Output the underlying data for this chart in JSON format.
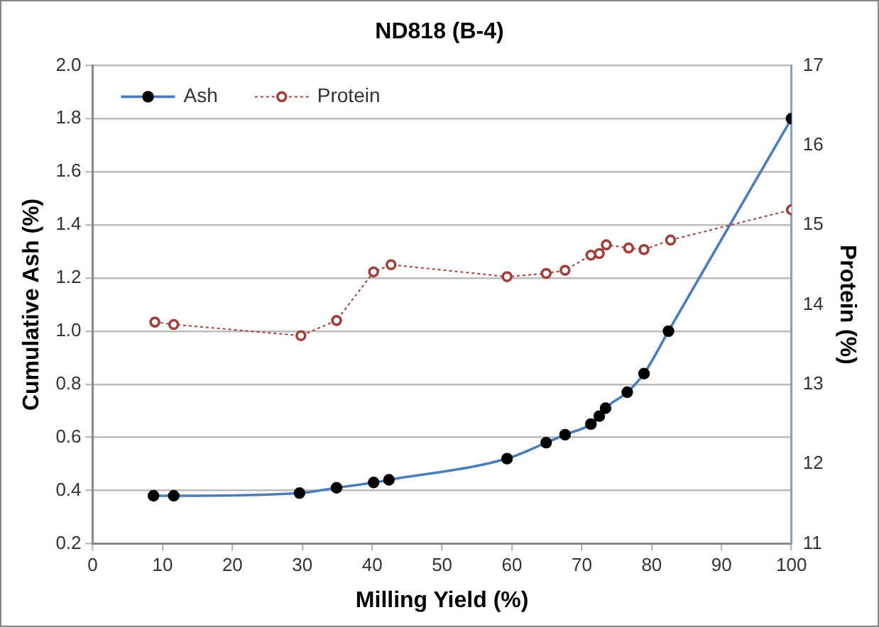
{
  "chart_data": {
    "type": "line",
    "title": "ND818 (B-4)",
    "xlabel": "Milling Yield (%)",
    "ylabel": "Cumulative Ash (%)",
    "y2label": "Protein (%)",
    "xlim": [
      0,
      100
    ],
    "xticks": [
      0,
      10,
      20,
      30,
      40,
      50,
      60,
      70,
      80,
      90,
      100
    ],
    "ylim": [
      0.2,
      2.0
    ],
    "yticks": [
      {
        "value": 0.2,
        "label": "0.2"
      },
      {
        "value": 0.4,
        "label": "0.4"
      },
      {
        "value": 0.6,
        "label": "0.6"
      },
      {
        "value": 0.8,
        "label": "0.8"
      },
      {
        "value": 1.0,
        "label": "1.0"
      },
      {
        "value": 1.2,
        "label": "1.2"
      },
      {
        "value": 1.4,
        "label": "1.4"
      },
      {
        "value": 1.6,
        "label": "1.6"
      },
      {
        "value": 1.8,
        "label": "1.8"
      },
      {
        "value": 2.0,
        "label": "2.0"
      }
    ],
    "y2lim": [
      11,
      17
    ],
    "y2ticks": [
      11,
      12,
      13,
      14,
      15,
      16,
      17
    ],
    "grid": "y",
    "legend": "top left",
    "series": [
      {
        "name": "Ash",
        "color": "#4a7ebb",
        "marker": "circle",
        "line_style": "solid",
        "x": [
          8.7,
          11.6,
          29.6,
          34.9,
          40.2,
          42.4,
          59.3,
          64.9,
          67.6,
          71.3,
          72.5,
          73.4,
          76.5,
          78.9,
          82.4,
          100
        ],
        "values": [
          0.38,
          0.38,
          0.39,
          0.41,
          0.43,
          0.44,
          0.52,
          0.58,
          0.61,
          0.65,
          0.68,
          0.71,
          0.77,
          0.84,
          1.0,
          1.8
        ]
      },
      {
        "name": "Protein",
        "color": "#a0403c",
        "marker": "circle",
        "line_style": "dotted",
        "axis": "y2",
        "x": [
          8.9,
          11.6,
          29.8,
          34.9,
          40.2,
          42.7,
          59.3,
          64.9,
          67.6,
          71.3,
          72.5,
          73.5,
          76.7,
          78.9,
          82.7,
          100
        ],
        "values": [
          13.78,
          13.75,
          13.61,
          13.8,
          14.41,
          14.5,
          14.35,
          14.39,
          14.43,
          14.62,
          14.64,
          14.75,
          14.71,
          14.69,
          14.81,
          15.19
        ]
      }
    ]
  }
}
